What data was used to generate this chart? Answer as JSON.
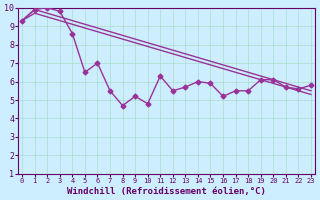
{
  "xlabel": "Windchill (Refroidissement éolien,°C)",
  "ylabel": "",
  "background_color": "#cceeff",
  "grid_color": "#aaddcc",
  "line_color": "#993399",
  "x_data": [
    0,
    1,
    2,
    3,
    4,
    5,
    6,
    7,
    8,
    9,
    10,
    11,
    12,
    13,
    14,
    15,
    16,
    17,
    18,
    19,
    20,
    21,
    22,
    23
  ],
  "y_main": [
    9.3,
    9.9,
    10.0,
    9.8,
    8.6,
    6.5,
    7.0,
    5.5,
    4.7,
    5.2,
    4.8,
    6.3,
    5.5,
    5.7,
    6.0,
    5.9,
    5.2,
    5.5,
    5.5,
    6.1,
    6.1,
    5.7,
    5.6,
    5.8
  ],
  "y_line1": [
    9.3,
    9.7,
    9.5,
    9.3,
    9.1,
    8.9,
    8.7,
    8.5,
    8.3,
    8.1,
    7.9,
    7.7,
    7.5,
    7.3,
    7.1,
    6.9,
    6.7,
    6.5,
    6.3,
    6.1,
    5.9,
    5.7,
    5.5,
    5.3
  ],
  "y_line2": [
    9.3,
    9.9,
    9.7,
    9.5,
    9.3,
    9.1,
    8.9,
    8.7,
    8.5,
    8.3,
    8.1,
    7.9,
    7.7,
    7.5,
    7.3,
    7.1,
    6.9,
    6.7,
    6.5,
    6.3,
    6.1,
    5.9,
    5.7,
    5.5
  ],
  "ylim": [
    1,
    10
  ],
  "xlim": [
    0,
    23
  ],
  "yticks": [
    1,
    2,
    3,
    4,
    5,
    6,
    7,
    8,
    9,
    10
  ],
  "xticks": [
    0,
    1,
    2,
    3,
    4,
    5,
    6,
    7,
    8,
    9,
    10,
    11,
    12,
    13,
    14,
    15,
    16,
    17,
    18,
    19,
    20,
    21,
    22,
    23
  ],
  "marker": "D",
  "markersize": 2.5,
  "linewidth": 1.0,
  "fontsize_xlabel": 6.5,
  "fontsize_ticks": 6
}
